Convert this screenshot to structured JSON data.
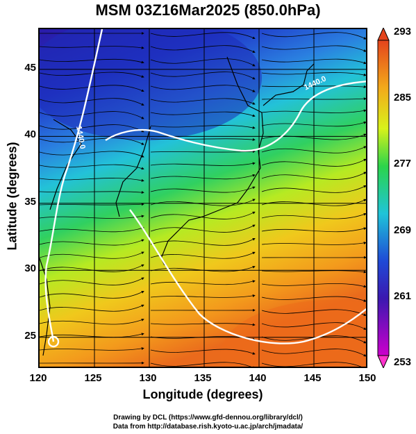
{
  "title": "MSM 03Z16Mar2025 (850.0hPa)",
  "xlabel": "Longitude (degrees)",
  "ylabel": "Latitude  (degrees)",
  "x_ticks": [
    "120",
    "125",
    "130",
    "135",
    "140",
    "145",
    "150"
  ],
  "y_ticks": [
    "45",
    "40",
    "35",
    "30",
    "25"
  ],
  "colorbar": {
    "ticks": [
      "293",
      "285",
      "277",
      "269",
      "261",
      "253"
    ],
    "min": 253,
    "max": 293,
    "colors": [
      "#cc00cc",
      "#1f2fbf",
      "#1fb4d6",
      "#2bd44b",
      "#d8f21a",
      "#f3a91a",
      "#e4441c"
    ]
  },
  "contour_labels": [
    "1440.0",
    "1440.0"
  ],
  "credits": {
    "line1": "Drawing by DCL (https://www.gfd-dennou.org/library/dcl/)",
    "line2": "Data from http://database.rish.kyoto-u.ac.jp/arch/jmadata/"
  },
  "map": {
    "lon_range": [
      120,
      150
    ],
    "lat_range": [
      22.6,
      48
    ],
    "grid_lon": [
      125,
      130,
      135,
      140,
      145
    ],
    "grid_lat": [
      25,
      30,
      35,
      40,
      45
    ]
  }
}
